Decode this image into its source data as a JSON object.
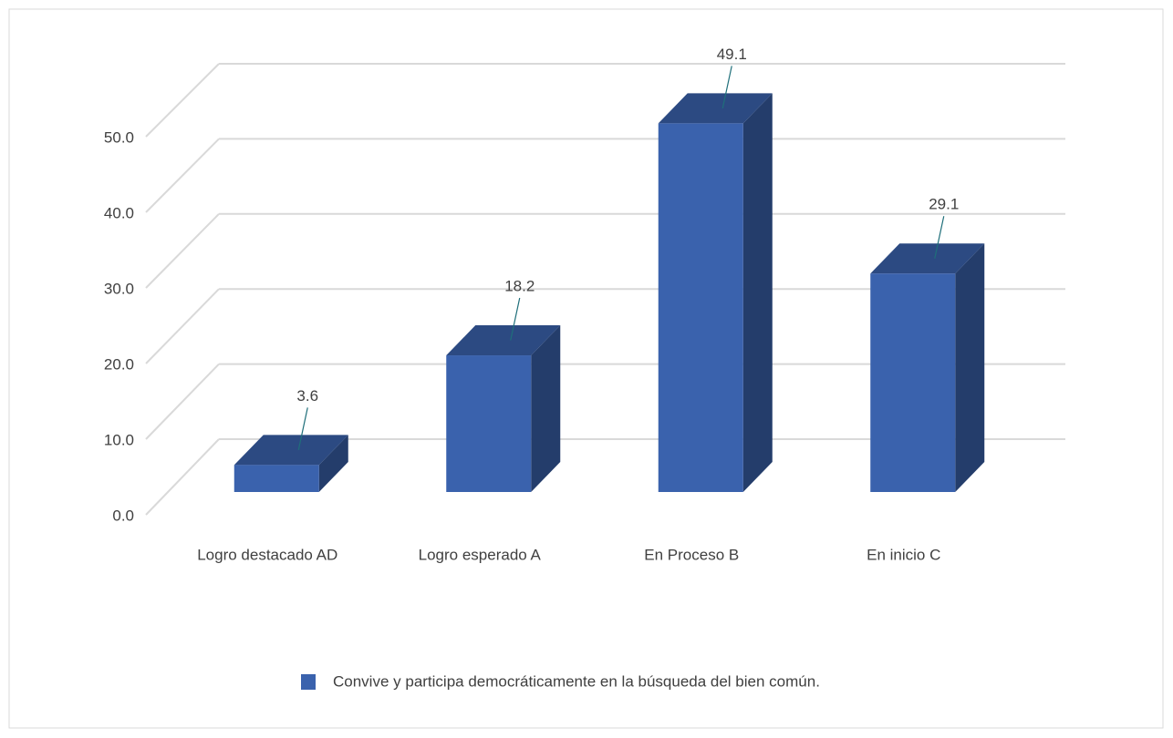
{
  "chart_data": {
    "type": "bar3d",
    "categories": [
      "Logro destacado AD",
      "Logro esperado A",
      "En Proceso  B",
      "En inicio  C"
    ],
    "series": [
      {
        "name": "Convive y participa democráticamente en la búsqueda del bien común.",
        "color": "#3a62ad",
        "values": [
          3.6,
          18.2,
          49.1,
          29.1
        ]
      }
    ],
    "ylim": [
      0,
      50
    ],
    "yticks": [
      {
        "value": 0,
        "label": "0.0"
      },
      {
        "value": 10,
        "label": "10.0"
      },
      {
        "value": 20,
        "label": "20.0"
      },
      {
        "value": 30,
        "label": "30.0"
      },
      {
        "value": 40,
        "label": "40.0"
      },
      {
        "value": 50,
        "label": "50.0"
      }
    ],
    "grid": true,
    "legend": "bottom"
  }
}
